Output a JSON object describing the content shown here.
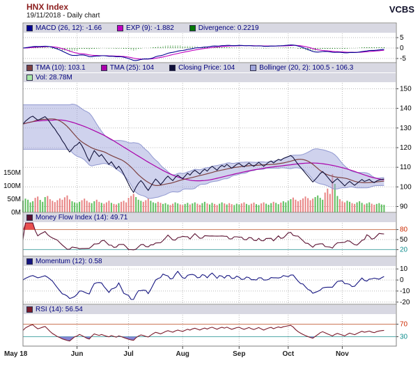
{
  "header": {
    "title": "HNX Index",
    "subtitle": "19/11/2018 - Daily chart",
    "brand": "VCBS"
  },
  "legends": {
    "macd": "MACD (26, 12): -1.66",
    "exp": "EXP (9): -1.882",
    "divergence": "Divergence: 0.2219",
    "tma10": "TMA (10): 103.1",
    "tma25": "TMA (25): 104",
    "closing": "Closing Price: 104",
    "bollinger": "Bollinger (20, 2): 100.5 - 106.3",
    "vol": "Vol: 28.78M",
    "mfi": "Money Flow Index (14): 49.71",
    "momentum": "Momentum (12): 0.58",
    "rsi": "RSI (14): 56.54"
  },
  "colors": {
    "macd_line": "#000090",
    "exp_line": "#c000c0",
    "divergence": "#067806",
    "tma10": "#7d4040",
    "tma25": "#aa00aa",
    "closing": "#11113a",
    "bollinger": "#a0a6dc",
    "bollinger_edge": "#9098d0",
    "vol_up": "#5fbf5f",
    "vol_down": "#e88484",
    "vol_swatch": "#a8e8a8",
    "mfi_line": "#5a1030",
    "momentum_line": "#151580",
    "rsi_line": "#7a1a2a",
    "overbought_line": "#cc7755",
    "oversold_line": "#55aaaa",
    "overbought_text": "#cc2a00",
    "oversold_text": "#0f8e8e",
    "fill_high": "#e53030",
    "fill_low": "#7070cc",
    "grid": "#b8b8b8",
    "frame": "#7f7f7f"
  },
  "chart_data": {
    "type": "line",
    "title": "HNX Index - 19/11/2018 - Daily chart with MACD, Bollinger, Volume, MFI, Momentum, RSI",
    "x_axis": {
      "slots": 153,
      "months": [
        {
          "label": "May 18",
          "slot": 0
        },
        {
          "label": "Jun",
          "slot": 22
        },
        {
          "label": "Jul",
          "slot": 43
        },
        {
          "label": "Aug",
          "slot": 65
        },
        {
          "label": "Sep",
          "slot": 88
        },
        {
          "label": "Oct",
          "slot": 108
        },
        {
          "label": "Nov",
          "slot": 130
        }
      ]
    },
    "close": [
      132.0,
      133.5,
      134.5,
      135.5,
      136.0,
      135.0,
      134.0,
      134.5,
      135.2,
      135.8,
      134.5,
      132.8,
      131.0,
      129.5,
      127.5,
      125.8,
      123.5,
      121.8,
      119.5,
      117.8,
      119.2,
      120.8,
      121.5,
      122.8,
      121.0,
      118.5,
      115.5,
      113.2,
      116.0,
      118.5,
      117.0,
      115.5,
      116.5,
      114.8,
      113.0,
      111.5,
      112.8,
      111.0,
      109.2,
      110.5,
      108.8,
      106.5,
      104.0,
      101.5,
      99.0,
      97.2,
      99.8,
      101.8,
      103.2,
      101.8,
      99.8,
      98.2,
      100.2,
      102.2,
      104.0,
      102.8,
      101.2,
      102.5,
      104.2,
      105.5,
      104.2,
      103.2,
      104.8,
      106.0,
      105.0,
      104.2,
      105.5,
      107.0,
      106.0,
      107.5,
      108.5,
      107.5,
      106.5,
      108.0,
      109.0,
      108.0,
      109.5,
      110.5,
      109.5,
      108.5,
      110.0,
      111.0,
      110.2,
      111.5,
      110.5,
      109.5,
      110.5,
      111.5,
      112.0,
      111.0,
      110.2,
      111.2,
      112.2,
      111.2,
      110.5,
      111.5,
      112.5,
      111.5,
      110.5,
      111.5,
      112.5,
      113.2,
      112.2,
      113.2,
      114.0,
      113.5,
      114.5,
      115.0,
      115.5,
      116.0,
      115.0,
      113.2,
      111.5,
      110.0,
      108.5,
      107.0,
      105.5,
      104.0,
      102.5,
      103.8,
      105.2,
      106.8,
      107.8,
      106.5,
      105.0,
      103.5,
      102.0,
      103.2,
      104.2,
      103.0,
      101.8,
      100.5,
      101.8,
      102.8,
      101.8,
      100.8,
      101.8,
      102.8,
      103.8,
      102.8,
      103.2,
      103.8,
      102.8,
      102.2,
      103.0,
      103.5,
      103.8,
      104.0
    ],
    "volume_m": [
      45,
      52,
      48,
      38,
      42,
      55,
      60,
      47,
      40,
      58,
      62,
      50,
      44,
      39,
      46,
      53,
      48,
      57,
      64,
      49,
      42,
      38,
      35,
      40,
      46,
      52,
      44,
      38,
      35,
      42,
      48,
      40,
      36,
      33,
      38,
      44,
      36,
      32,
      30,
      35,
      40,
      44,
      38,
      55,
      62,
      70,
      58,
      48,
      44,
      40,
      46,
      52,
      44,
      38,
      35,
      40,
      36,
      32,
      35,
      30,
      28,
      33,
      38,
      34,
      30,
      28,
      32,
      36,
      30,
      34,
      38,
      33,
      29,
      35,
      40,
      34,
      30,
      36,
      32,
      28,
      33,
      38,
      34,
      30,
      35,
      31,
      28,
      33,
      30,
      34,
      38,
      32,
      28,
      33,
      37,
      31,
      28,
      34,
      38,
      33,
      29,
      35,
      40,
      36,
      31,
      37,
      42,
      38,
      44,
      50,
      56,
      48,
      42,
      47,
      53,
      60,
      54,
      46,
      52,
      58,
      64,
      55,
      48,
      75,
      90,
      70,
      145,
      108,
      62,
      50,
      42,
      38,
      44,
      40,
      35,
      32,
      38,
      42,
      36,
      30,
      34,
      38,
      33,
      29,
      32,
      35,
      30,
      28.78
    ],
    "panels": {
      "macd": {
        "fast": 26,
        "slow": 12,
        "signal": 9,
        "value": -1.66,
        "exp_value": -1.882,
        "divergence": 0.2219,
        "ticks": [
          5,
          0,
          -5
        ],
        "range": [
          -7,
          7
        ]
      },
      "price": {
        "ticks": [
          150,
          140,
          130,
          120,
          110,
          100,
          90
        ],
        "range": [
          87,
          153
        ],
        "tma10": 103.1,
        "tma25": 104,
        "closing": 104,
        "bollinger_low": 100.5,
        "bollinger_high": 106.3
      },
      "volume": {
        "ticks_m": [
          150,
          100,
          50,
          0
        ],
        "last_m": 28.78
      },
      "mfi": {
        "period": 14,
        "value": 49.71,
        "ticks": [
          80,
          50,
          20
        ],
        "range": [
          0,
          100
        ],
        "overbought": 80,
        "oversold": 20
      },
      "momentum": {
        "period": 12,
        "value": 0.58,
        "ticks": [
          10,
          0,
          -10,
          -20
        ],
        "range": [
          -22,
          12
        ]
      },
      "rsi": {
        "period": 14,
        "value": 56.54,
        "ticks": [
          70,
          30
        ],
        "range": [
          0,
          100
        ],
        "overbought": 70,
        "oversold": 30
      }
    }
  }
}
